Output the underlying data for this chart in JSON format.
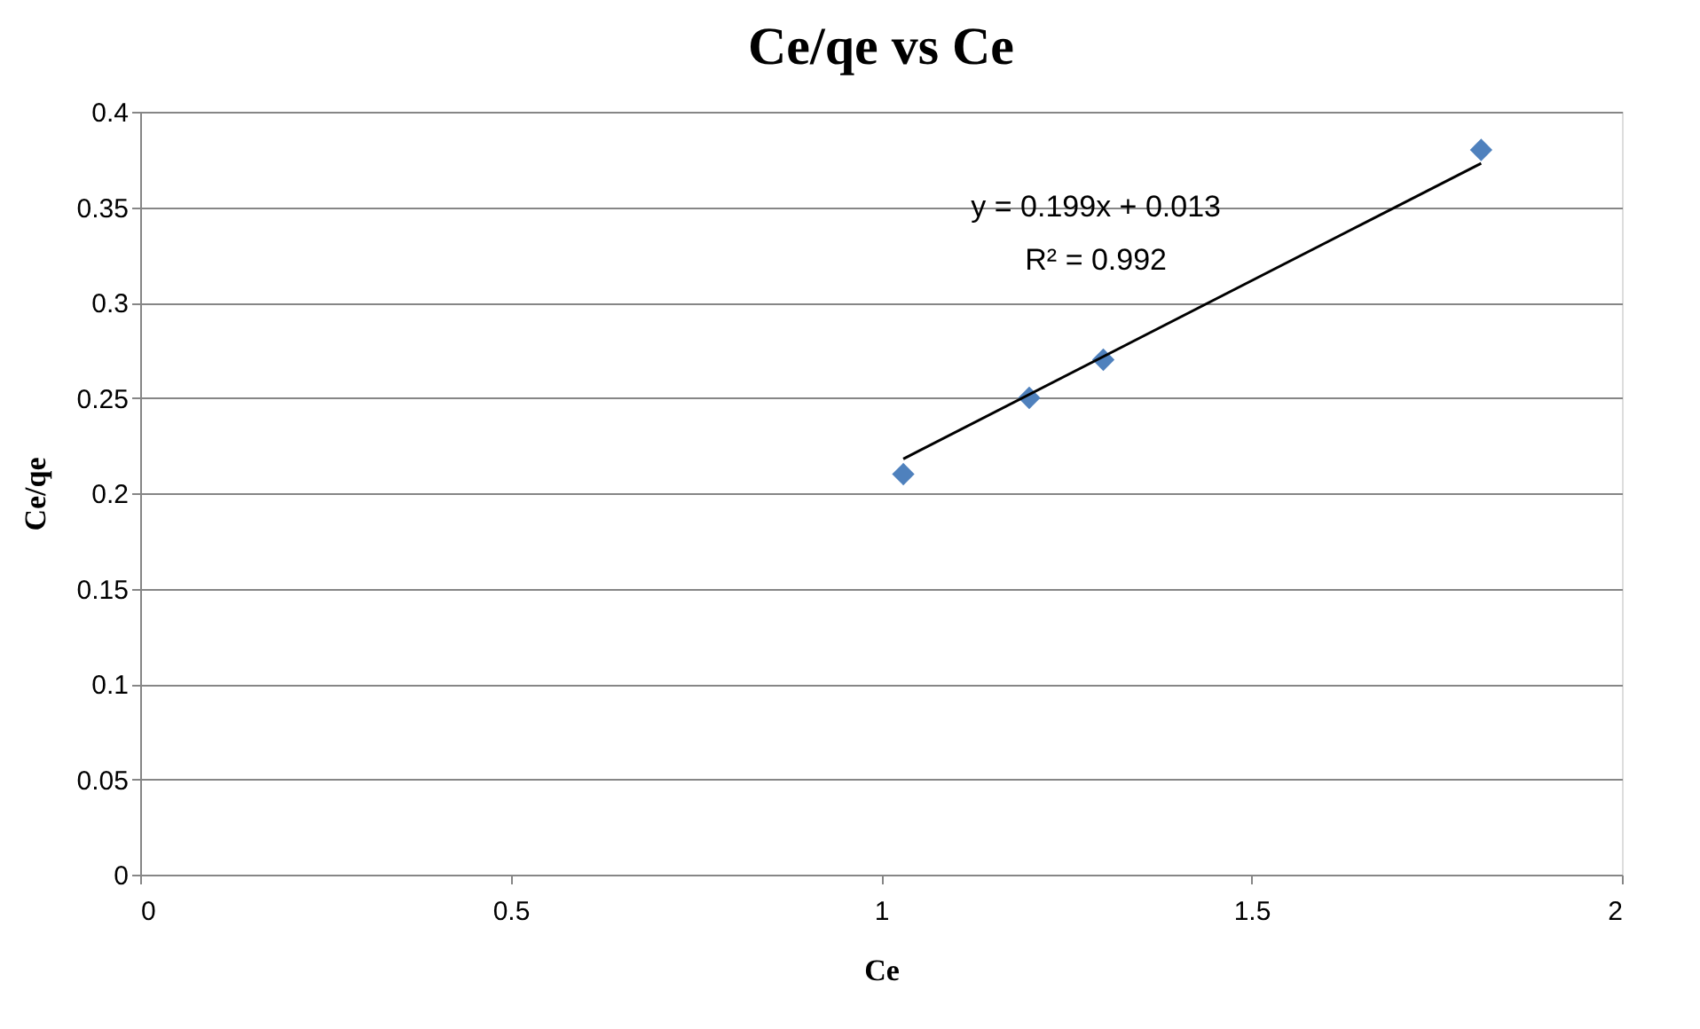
{
  "chart_data": {
    "type": "scatter",
    "title": "Ce/qe vs Ce",
    "xlabel": "Ce",
    "ylabel": "Ce/qe",
    "xlim": [
      0,
      2
    ],
    "xticks": [
      0,
      0.5,
      1,
      1.5,
      2
    ],
    "ylim": [
      0,
      0.4
    ],
    "yticks": [
      0,
      0.05,
      0.1,
      0.15,
      0.2,
      0.25,
      0.3,
      0.35,
      0.4
    ],
    "grid": "y",
    "marker": "diamond",
    "series": [
      {
        "color": "#4f81bd",
        "x": [
          1.03,
          1.2,
          1.3,
          1.81
        ],
        "values": [
          0.21,
          0.25,
          0.27,
          0.38
        ]
      },
      {
        "type": "line",
        "color": "#000000",
        "line_style": "solid",
        "marker": "none",
        "x": [
          1.03,
          1.81
        ],
        "values": [
          0.218,
          0.373
        ]
      }
    ],
    "annotations": [
      "y = 0.199x + 0.013",
      "R² = 0.992"
    ]
  }
}
